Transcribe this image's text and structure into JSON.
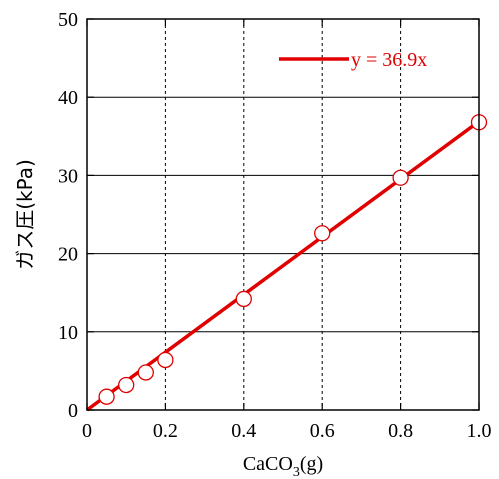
{
  "chart_data": {
    "type": "scatter",
    "xlabel": "CaCO",
    "xlabel_sub": "3",
    "xlabel_unit": "(g)",
    "ylabel": "ガス圧(kPa)",
    "xlim": [
      0,
      1.0
    ],
    "ylim": [
      0,
      50
    ],
    "x_ticks": [
      "0",
      "0.2",
      "0.4",
      "0.6",
      "0.8",
      "1.0"
    ],
    "y_ticks": [
      "0",
      "10",
      "20",
      "30",
      "40",
      "50"
    ],
    "grid": {
      "x": "dashed",
      "y": "solid"
    },
    "legend_position": "top-right",
    "series": [
      {
        "kind": "points",
        "marker": "open-circle",
        "x": [
          0.05,
          0.1,
          0.15,
          0.2,
          0.4,
          0.6,
          0.8,
          1.0
        ],
        "y": [
          1.7,
          3.2,
          4.8,
          6.4,
          14.2,
          22.6,
          29.7,
          36.8
        ]
      },
      {
        "kind": "fit-line",
        "name": "y = 36.9x",
        "slope": 36.9,
        "intercept": 0
      }
    ],
    "colors": {
      "line": "#e00000",
      "marker_edge": "#e00000",
      "marker_fill": "#ffffff",
      "axis": "#000000"
    }
  }
}
